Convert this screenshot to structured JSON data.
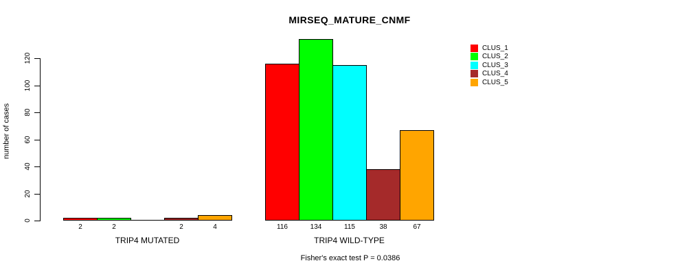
{
  "chart_data": {
    "type": "bar",
    "title": "MIRSEQ_MATURE_CNMF",
    "ylabel": "number of cases",
    "xlabel": "",
    "annotation": "Fisher's exact test P = 0.0386",
    "ylim": [
      0,
      120
    ],
    "yticks": [
      0,
      20,
      40,
      60,
      80,
      100,
      120
    ],
    "grid": false,
    "legend_position": "right",
    "background_color": "#FFFFFF",
    "axis_color": "#000000",
    "categories": [
      "TRIP4 MUTATED",
      "TRIP4 WILD-TYPE"
    ],
    "series": [
      {
        "name": "CLUS_1",
        "color": "#FF0000",
        "values": [
          2,
          116
        ],
        "bar_labels": [
          "2",
          "116"
        ]
      },
      {
        "name": "CLUS_2",
        "color": "#00FF00",
        "values": [
          2,
          134
        ],
        "bar_labels": [
          "2",
          "134"
        ]
      },
      {
        "name": "CLUS_3",
        "color": "#00FFFF",
        "values": [
          0,
          115
        ],
        "bar_labels": [
          "",
          "115"
        ]
      },
      {
        "name": "CLUS_4",
        "color": "#A52A2A",
        "values": [
          2,
          38
        ],
        "bar_labels": [
          "2",
          "38"
        ]
      },
      {
        "name": "CLUS_5",
        "color": "#FFA500",
        "values": [
          4,
          67
        ],
        "bar_labels": [
          "4",
          "67"
        ]
      }
    ]
  }
}
